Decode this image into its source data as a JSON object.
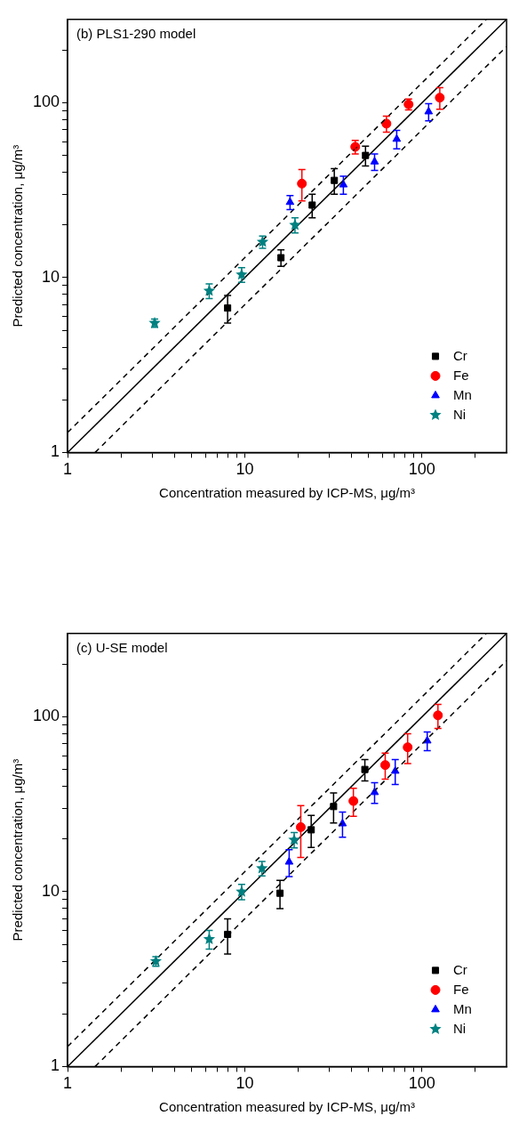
{
  "chart_data": [
    {
      "type": "scatter",
      "annotations": [
        "(b) PLS1-290 model"
      ],
      "xlabel": "Concentration measured by ICP-MS, μg/m³",
      "ylabel": "Predicted concentration, μg/m³",
      "log": "xy",
      "xlim": [
        1,
        300
      ],
      "ylim": [
        1,
        300
      ],
      "xticks": [
        1,
        {
          "value": 2,
          "label": null
        },
        {
          "value": 3,
          "label": null
        },
        {
          "value": 4,
          "label": null
        },
        {
          "value": 5,
          "label": null
        },
        {
          "value": 6,
          "label": null
        },
        {
          "value": 7,
          "label": null
        },
        {
          "value": 8,
          "label": null
        },
        {
          "value": 9,
          "label": null
        },
        10,
        {
          "value": 20,
          "label": null
        },
        {
          "value": 30,
          "label": null
        },
        {
          "value": 40,
          "label": null
        },
        {
          "value": 50,
          "label": null
        },
        {
          "value": 60,
          "label": null
        },
        {
          "value": 70,
          "label": null
        },
        {
          "value": 80,
          "label": null
        },
        {
          "value": 90,
          "label": null
        },
        100,
        {
          "value": 200,
          "label": null
        }
      ],
      "yticks": [
        1,
        {
          "value": 2,
          "label": null
        },
        {
          "value": 3,
          "label": null
        },
        {
          "value": 4,
          "label": null
        },
        {
          "value": 5,
          "label": null
        },
        {
          "value": 6,
          "label": null
        },
        {
          "value": 7,
          "label": null
        },
        {
          "value": 8,
          "label": null
        },
        {
          "value": 9,
          "label": null
        },
        10,
        {
          "value": 20,
          "label": null
        },
        {
          "value": 30,
          "label": null
        },
        {
          "value": 40,
          "label": null
        },
        {
          "value": 50,
          "label": null
        },
        {
          "value": 60,
          "label": null
        },
        {
          "value": 70,
          "label": null
        },
        {
          "value": 80,
          "label": null
        },
        {
          "value": 90,
          "label": null
        },
        100,
        {
          "value": 200,
          "label": null
        }
      ],
      "grid": false,
      "legend": "bottom right",
      "series": [
        {
          "type": "line",
          "color": "#000000",
          "line_style": "solid",
          "marker": "none",
          "x": [
            1,
            300
          ],
          "values": [
            1,
            300
          ]
        },
        {
          "type": "line",
          "color": "#000000",
          "line_style": "dashed",
          "marker": "none",
          "x": [
            1,
            230
          ],
          "values": [
            1.3,
            299
          ]
        },
        {
          "type": "line",
          "color": "#000000",
          "line_style": "dashed",
          "marker": "none",
          "x": [
            1.43,
            300
          ],
          "values": [
            1,
            210
          ]
        },
        {
          "name": "Cr",
          "color": "#000000",
          "marker": "square",
          "x": [
            8,
            16,
            24,
            32,
            48
          ],
          "values": [
            6.7,
            13,
            26,
            36,
            50
          ],
          "errors": [
            1.2,
            1.4,
            4,
            6,
            6.5
          ]
        },
        {
          "name": "Fe",
          "color": "#ff0000",
          "marker": "circle",
          "x": [
            21,
            42,
            63,
            84,
            126
          ],
          "values": [
            34.5,
            56,
            76,
            98,
            107
          ],
          "errors": [
            7,
            5,
            8,
            7,
            15
          ]
        },
        {
          "name": "Mn",
          "color": "#0000ff",
          "marker": "triangle",
          "x": [
            18,
            36,
            54,
            72,
            109
          ],
          "values": [
            27,
            34,
            46,
            62,
            89
          ],
          "errors": [
            2.5,
            4,
            5,
            7.5,
            10
          ]
        },
        {
          "name": "Ni",
          "color": "#008080",
          "marker": "star",
          "x": [
            3.1,
            6.3,
            9.6,
            12.6,
            19.2
          ],
          "values": [
            5.5,
            8.4,
            10.4,
            16,
            20
          ],
          "errors": [
            0.3,
            0.8,
            1,
            1.3,
            2
          ]
        }
      ]
    },
    {
      "type": "scatter",
      "annotations": [
        "(c) U-SE model"
      ],
      "xlabel": "Concentration measured by ICP-MS, μg/m³",
      "ylabel": "Predicted concentration, μg/m³",
      "log": "xy",
      "xlim": [
        1,
        300
      ],
      "ylim": [
        1,
        300
      ],
      "xticks": [
        1,
        {
          "value": 2,
          "label": null
        },
        {
          "value": 3,
          "label": null
        },
        {
          "value": 4,
          "label": null
        },
        {
          "value": 5,
          "label": null
        },
        {
          "value": 6,
          "label": null
        },
        {
          "value": 7,
          "label": null
        },
        {
          "value": 8,
          "label": null
        },
        {
          "value": 9,
          "label": null
        },
        10,
        {
          "value": 20,
          "label": null
        },
        {
          "value": 30,
          "label": null
        },
        {
          "value": 40,
          "label": null
        },
        {
          "value": 50,
          "label": null
        },
        {
          "value": 60,
          "label": null
        },
        {
          "value": 70,
          "label": null
        },
        {
          "value": 80,
          "label": null
        },
        {
          "value": 90,
          "label": null
        },
        100,
        {
          "value": 200,
          "label": null
        }
      ],
      "yticks": [
        1,
        {
          "value": 2,
          "label": null
        },
        {
          "value": 3,
          "label": null
        },
        {
          "value": 4,
          "label": null
        },
        {
          "value": 5,
          "label": null
        },
        {
          "value": 6,
          "label": null
        },
        {
          "value": 7,
          "label": null
        },
        {
          "value": 8,
          "label": null
        },
        {
          "value": 9,
          "label": null
        },
        10,
        {
          "value": 20,
          "label": null
        },
        {
          "value": 30,
          "label": null
        },
        {
          "value": 40,
          "label": null
        },
        {
          "value": 50,
          "label": null
        },
        {
          "value": 60,
          "label": null
        },
        {
          "value": 70,
          "label": null
        },
        {
          "value": 80,
          "label": null
        },
        {
          "value": 90,
          "label": null
        },
        100,
        {
          "value": 200,
          "label": null
        }
      ],
      "grid": false,
      "legend": "bottom right",
      "series": [
        {
          "type": "line",
          "color": "#000000",
          "line_style": "solid",
          "marker": "none",
          "x": [
            1,
            300
          ],
          "values": [
            1,
            300
          ]
        },
        {
          "type": "line",
          "color": "#000000",
          "line_style": "dashed",
          "marker": "none",
          "x": [
            1,
            230
          ],
          "values": [
            1.3,
            299
          ]
        },
        {
          "type": "line",
          "color": "#000000",
          "line_style": "dashed",
          "marker": "none",
          "x": [
            1.43,
            300
          ],
          "values": [
            1,
            210
          ]
        },
        {
          "name": "Cr",
          "color": "#000000",
          "marker": "square",
          "x": [
            8,
            15.8,
            23.7,
            31.7,
            47.6
          ],
          "values": [
            5.7,
            9.8,
            22.6,
            30.7,
            50
          ],
          "errors": [
            1.3,
            1.8,
            4.7,
            6,
            7
          ]
        },
        {
          "name": "Fe",
          "color": "#ff0000",
          "marker": "circle",
          "x": [
            20.7,
            41,
            62,
            83,
            123
          ],
          "values": [
            23.4,
            33,
            53,
            67,
            102
          ],
          "errors": [
            7.7,
            6,
            9,
            13,
            16
          ]
        },
        {
          "name": "Mn",
          "color": "#0000ff",
          "marker": "triangle",
          "x": [
            17.8,
            35.6,
            54,
            70.6,
            107
          ],
          "values": [
            14.8,
            24.5,
            37,
            49,
            73
          ],
          "errors": [
            2.6,
            4,
            5,
            8,
            9
          ]
        },
        {
          "name": "Ni",
          "color": "#008080",
          "marker": "star",
          "x": [
            3.15,
            6.3,
            9.6,
            12.5,
            19
          ],
          "values": [
            4,
            5.35,
            10,
            13.6,
            19.8
          ],
          "errors": [
            0.25,
            0.65,
            1,
            1.3,
            2
          ]
        }
      ]
    }
  ]
}
